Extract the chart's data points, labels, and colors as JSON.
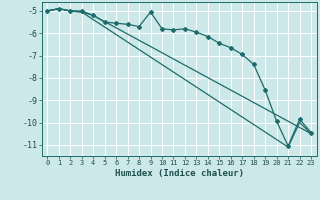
{
  "xlabel": "Humidex (Indice chaleur)",
  "bg_color": "#cce8e8",
  "grid_color": "#ffffff",
  "line_color": "#1e6b6b",
  "xlim": [
    -0.5,
    23.5
  ],
  "ylim": [
    -11.5,
    -4.6
  ],
  "yticks": [
    -5,
    -6,
    -7,
    -8,
    -9,
    -10,
    -11
  ],
  "xticks": [
    0,
    1,
    2,
    3,
    4,
    5,
    6,
    7,
    8,
    9,
    10,
    11,
    12,
    13,
    14,
    15,
    16,
    17,
    18,
    19,
    20,
    21,
    22,
    23
  ],
  "line1_x": [
    0,
    1,
    2,
    3,
    4,
    5,
    6,
    7,
    8,
    9,
    10,
    11,
    12,
    13,
    14,
    15,
    16,
    17,
    18,
    19,
    20,
    21,
    22,
    23
  ],
  "line1_y": [
    -5.0,
    -4.9,
    -5.0,
    -5.0,
    -5.2,
    -5.5,
    -5.55,
    -5.6,
    -5.7,
    -5.05,
    -5.8,
    -5.85,
    -5.8,
    -5.95,
    -6.15,
    -6.45,
    -6.65,
    -6.95,
    -7.4,
    -8.55,
    -9.95,
    -11.05,
    -9.85,
    -10.45
  ],
  "line2_x": [
    0,
    1,
    2,
    3,
    21,
    22,
    23
  ],
  "line2_y": [
    -5.0,
    -4.9,
    -5.0,
    -5.05,
    -11.1,
    -10.0,
    -10.5
  ],
  "line3_x": [
    0,
    1,
    2,
    3,
    4,
    23
  ],
  "line3_y": [
    -5.0,
    -4.9,
    -5.0,
    -5.05,
    -5.2,
    -10.5
  ]
}
